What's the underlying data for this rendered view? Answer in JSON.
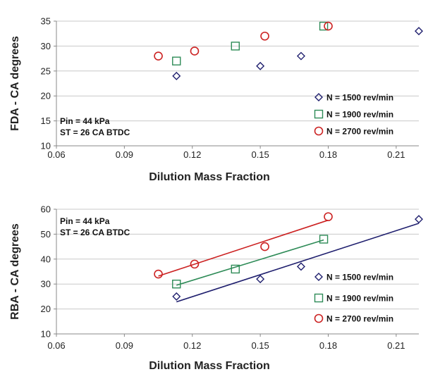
{
  "colors": {
    "n1500": "#1f1f6e",
    "n1900": "#2e8b57",
    "n2700": "#cc2222",
    "grid": "#c8c8c8",
    "axis": "#888888"
  },
  "chart_data": [
    {
      "type": "scatter",
      "id": "fda",
      "title": "",
      "xlabel": "Dilution Mass Fraction",
      "ylabel": "FDA  - CA degrees",
      "xlim": [
        0.06,
        0.22
      ],
      "ylim": [
        10,
        35
      ],
      "xticks": [
        0.06,
        0.09,
        0.12,
        0.15,
        0.18,
        0.21
      ],
      "xtick_labels": [
        "0.06",
        "0.09",
        "0.12",
        "0.15",
        "0.18",
        "0.21"
      ],
      "yticks": [
        10,
        15,
        20,
        25,
        30,
        35
      ],
      "ytick_labels": [
        "10",
        "15",
        "20",
        "25",
        "30",
        "35"
      ],
      "grid": true,
      "legend_position": "right",
      "annotations": [
        "Pin = 44 kPa",
        "ST = 26 CA BTDC"
      ],
      "trendlines": false,
      "series": [
        {
          "name": "N = 1500 rev/min",
          "marker": "diamond",
          "x": [
            0.113,
            0.15,
            0.168,
            0.22
          ],
          "y": [
            24,
            26,
            28,
            33
          ]
        },
        {
          "name": "N = 1900 rev/min",
          "marker": "square",
          "x": [
            0.113,
            0.139,
            0.178
          ],
          "y": [
            27,
            30,
            34
          ]
        },
        {
          "name": "N = 2700 rev/min",
          "marker": "circle",
          "x": [
            0.105,
            0.121,
            0.152,
            0.18
          ],
          "y": [
            28,
            29,
            32,
            34
          ]
        }
      ]
    },
    {
      "type": "scatter",
      "id": "rba",
      "title": "",
      "xlabel": "Dilution Mass Fraction",
      "ylabel": "RBA  - CA degrees",
      "xlim": [
        0.06,
        0.22
      ],
      "ylim": [
        10,
        60
      ],
      "xticks": [
        0.06,
        0.09,
        0.12,
        0.15,
        0.18,
        0.21
      ],
      "xtick_labels": [
        "0.06",
        "0.09",
        "0.12",
        "0.15",
        "0.18",
        "0.21"
      ],
      "yticks": [
        10,
        20,
        30,
        40,
        50,
        60
      ],
      "ytick_labels": [
        "10",
        "20",
        "30",
        "40",
        "50",
        "60"
      ],
      "grid": true,
      "legend_position": "bottom-right",
      "annotations": [
        "Pin = 44 kPa",
        "ST = 26 CA BTDC"
      ],
      "trendlines": true,
      "series": [
        {
          "name": "N = 1500 rev/min",
          "marker": "diamond",
          "x": [
            0.113,
            0.15,
            0.168,
            0.22
          ],
          "y": [
            25,
            32,
            37,
            56
          ]
        },
        {
          "name": "N = 1900 rev/min",
          "marker": "square",
          "x": [
            0.113,
            0.139,
            0.178
          ],
          "y": [
            30,
            36,
            48
          ]
        },
        {
          "name": "N = 2700 rev/min",
          "marker": "circle",
          "x": [
            0.105,
            0.121,
            0.152,
            0.18
          ],
          "y": [
            34,
            38,
            45,
            57
          ]
        }
      ]
    }
  ]
}
